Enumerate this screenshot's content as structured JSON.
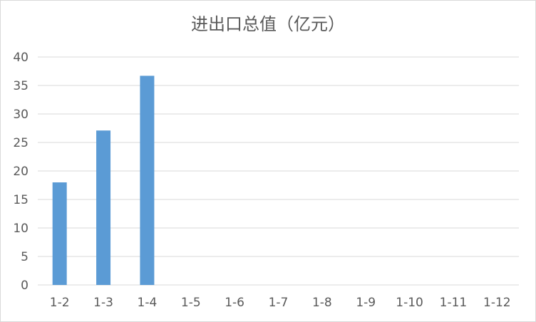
{
  "chart_data": {
    "type": "bar",
    "title": "进出口总值（亿元）",
    "xlabel": "",
    "ylabel": "",
    "categories": [
      "1-2",
      "1-3",
      "1-4",
      "1-5",
      "1-6",
      "1-7",
      "1-8",
      "1-9",
      "1-10",
      "1-11",
      "1-12"
    ],
    "values": [
      18,
      27.1,
      36.7,
      null,
      null,
      null,
      null,
      null,
      null,
      null,
      null
    ],
    "ylim": [
      0,
      40
    ],
    "yticks": [
      "0",
      "5",
      "10",
      "15",
      "20",
      "25",
      "30",
      "35",
      "40"
    ],
    "grid": true,
    "legend": "none",
    "bar_color": "#5b9bd5",
    "grid_color": "#d9d9d9",
    "text_color": "#595959"
  }
}
